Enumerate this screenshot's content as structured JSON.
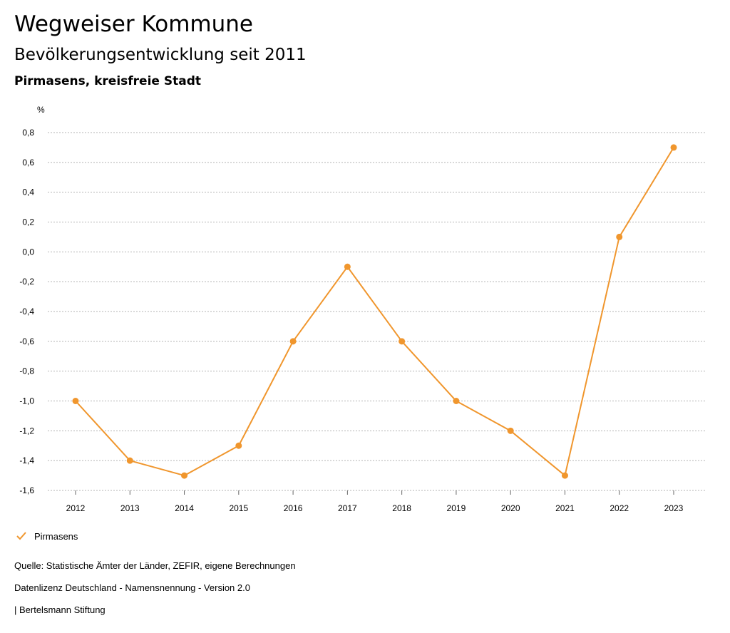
{
  "header": {
    "title": "Wegweiser Kommune",
    "subtitle": "Bevölkerungsentwicklung seit 2011",
    "region": "Pirmasens, kreisfreie Stadt"
  },
  "chart_data": {
    "type": "line",
    "ylabel": "%",
    "xlabel": "",
    "ylim": [
      -1.6,
      0.8
    ],
    "yticks": [
      0.8,
      0.6,
      0.4,
      0.2,
      0.0,
      -0.2,
      -0.4,
      -0.6,
      -0.8,
      -1.0,
      -1.2,
      -1.4,
      -1.6
    ],
    "ytick_labels": [
      "0,8",
      "0,6",
      "0,4",
      "0,2",
      "0,0",
      "-0,2",
      "-0,4",
      "-0,6",
      "-0,8",
      "-1,0",
      "-1,2",
      "-1,4",
      "-1,6"
    ],
    "categories": [
      "2012",
      "2013",
      "2014",
      "2015",
      "2016",
      "2017",
      "2018",
      "2019",
      "2020",
      "2021",
      "2022",
      "2023"
    ],
    "series": [
      {
        "name": "Pirmasens",
        "color": "#f0962d",
        "values": [
          -1.0,
          -1.4,
          -1.5,
          -1.3,
          -0.6,
          -0.1,
          -0.6,
          -1.0,
          -1.2,
          -1.5,
          0.1,
          0.7
        ]
      }
    ],
    "grid": true
  },
  "legend": {
    "label": "Pirmasens",
    "icon": "checkmark-icon",
    "color": "#f0962d"
  },
  "footer": {
    "source": "Quelle: Statistische Ämter der Länder, ZEFIR, eigene Berechnungen",
    "license": "Datenlizenz Deutschland - Namensnennung - Version 2.0",
    "publisher": "| Bertelsmann Stiftung"
  }
}
